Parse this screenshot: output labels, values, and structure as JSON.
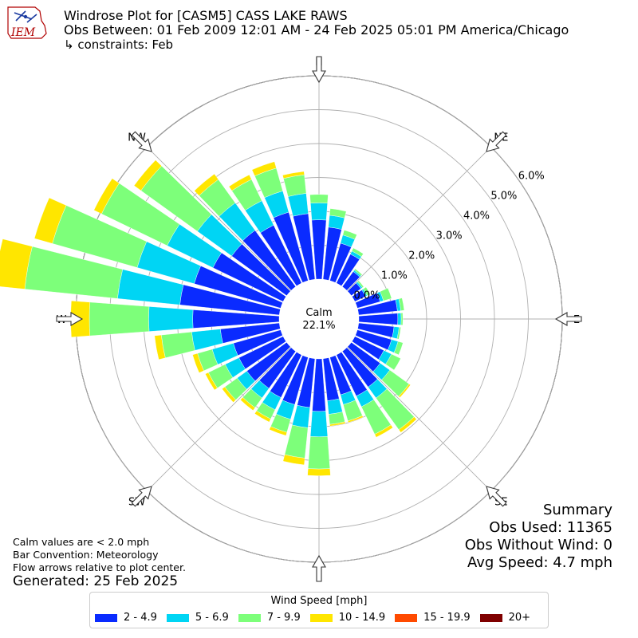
{
  "header": {
    "logo_text": "IEM",
    "title_line1": "Windrose Plot for [CASM5] CASS LAKE RAWS",
    "title_line2": "Obs Between: 01 Feb 2009 12:01 AM - 24 Feb 2025 05:01 PM America/Chicago",
    "title_line3": "↳ constraints: Feb"
  },
  "notes": {
    "calm_note": "Calm values are < 2.0 mph",
    "bar_convention": "Bar Convention: Meteorology",
    "flow_note": "Flow arrows relative to plot center.",
    "generated": "Generated: 25 Feb 2025"
  },
  "summary": {
    "title": "Summary",
    "obs_used": "Obs Used: 11365",
    "obs_without_wind": "Obs Without Wind: 0",
    "avg_speed": "Avg Speed: 4.7 mph"
  },
  "legend": {
    "title": "Wind Speed [mph]",
    "items": [
      {
        "label": "2 - 4.9",
        "color": "#0a2bff"
      },
      {
        "label": "5 - 6.9",
        "color": "#00d5f4"
      },
      {
        "label": "7 - 9.9",
        "color": "#7dff7a"
      },
      {
        "label": "10 - 14.9",
        "color": "#ffe600"
      },
      {
        "label": "15 - 19.9",
        "color": "#ff4a00"
      },
      {
        "label": "20+",
        "color": "#7f0000"
      }
    ]
  },
  "chart_data": {
    "type": "windrose",
    "calm_label": "Calm",
    "calm_value": "22.1%",
    "calm_percent": 22.1,
    "radial_ticks": [
      "0.0%",
      "1.0%",
      "2.0%",
      "3.0%",
      "4.0%",
      "5.0%",
      "6.0%"
    ],
    "radial_max": 6.0,
    "directions": [
      "N",
      "NE",
      "E",
      "SE",
      "S",
      "SW",
      "W",
      "NW"
    ],
    "bin_labels": [
      "2 - 4.9",
      "5 - 6.9",
      "7 - 9.9",
      "10 - 14.9",
      "15 - 19.9",
      "20+"
    ],
    "sectors_deg": [
      0,
      10,
      20,
      30,
      40,
      50,
      60,
      70,
      80,
      90,
      100,
      110,
      120,
      130,
      140,
      150,
      160,
      170,
      180,
      190,
      200,
      210,
      220,
      230,
      240,
      250,
      260,
      270,
      280,
      290,
      300,
      310,
      320,
      330,
      340,
      350
    ],
    "values": [
      [
        1.75,
        0.5,
        0.25,
        0.0,
        0,
        0
      ],
      [
        1.55,
        0.35,
        0.2,
        0.0,
        0,
        0
      ],
      [
        1.15,
        0.25,
        0.15,
        0.0,
        0,
        0
      ],
      [
        0.95,
        0.1,
        0.1,
        0.0,
        0,
        0
      ],
      [
        0.55,
        0.05,
        0.05,
        0.0,
        0,
        0
      ],
      [
        0.35,
        0.05,
        0.05,
        0.0,
        0,
        0
      ],
      [
        0.35,
        0.05,
        0.1,
        0.0,
        0,
        0
      ],
      [
        0.7,
        0.1,
        0.25,
        0.0,
        0,
        0
      ],
      [
        1.15,
        0.1,
        0.1,
        0.0,
        0,
        0
      ],
      [
        1.15,
        0.1,
        0.05,
        0.0,
        0,
        0
      ],
      [
        1.05,
        0.15,
        0.05,
        0.0,
        0,
        0
      ],
      [
        1.05,
        0.2,
        0.15,
        0.0,
        0,
        0
      ],
      [
        0.95,
        0.25,
        0.3,
        0.0,
        0,
        0
      ],
      [
        1.05,
        0.35,
        0.7,
        0.05,
        0,
        0
      ],
      [
        1.3,
        0.4,
        1.15,
        0.1,
        0,
        0
      ],
      [
        1.35,
        0.35,
        0.9,
        0.1,
        0,
        0
      ],
      [
        1.15,
        0.3,
        0.5,
        0.05,
        0,
        0
      ],
      [
        1.25,
        0.4,
        0.3,
        0.05,
        0,
        0
      ],
      [
        1.55,
        0.75,
        0.95,
        0.2,
        0,
        0
      ],
      [
        1.45,
        0.6,
        0.9,
        0.2,
        0,
        0
      ],
      [
        1.45,
        0.45,
        0.4,
        0.1,
        0,
        0
      ],
      [
        1.4,
        0.4,
        0.3,
        0.1,
        0,
        0
      ],
      [
        1.35,
        0.35,
        0.35,
        0.1,
        0,
        0
      ],
      [
        1.45,
        0.35,
        0.45,
        0.1,
        0,
        0
      ],
      [
        1.45,
        0.45,
        0.55,
        0.1,
        0,
        0
      ],
      [
        1.45,
        0.65,
        0.45,
        0.15,
        0,
        0
      ],
      [
        1.75,
        0.85,
        0.9,
        0.2,
        0,
        0
      ],
      [
        2.55,
        1.3,
        1.75,
        0.55,
        0,
        0
      ],
      [
        2.95,
        1.85,
        2.75,
        0.9,
        0,
        0
      ],
      [
        2.65,
        1.75,
        2.6,
        0.55,
        0,
        0
      ],
      [
        2.3,
        1.5,
        2.15,
        0.25,
        0,
        0
      ],
      [
        2.0,
        1.25,
        2.05,
        0.25,
        0,
        0
      ],
      [
        2.05,
        1.0,
        0.85,
        0.2,
        0,
        0
      ],
      [
        1.9,
        0.8,
        0.7,
        0.15,
        0,
        0
      ],
      [
        2.1,
        0.65,
        0.7,
        0.2,
        0,
        0
      ],
      [
        1.95,
        0.6,
        0.55,
        0.1,
        0,
        0
      ]
    ]
  }
}
